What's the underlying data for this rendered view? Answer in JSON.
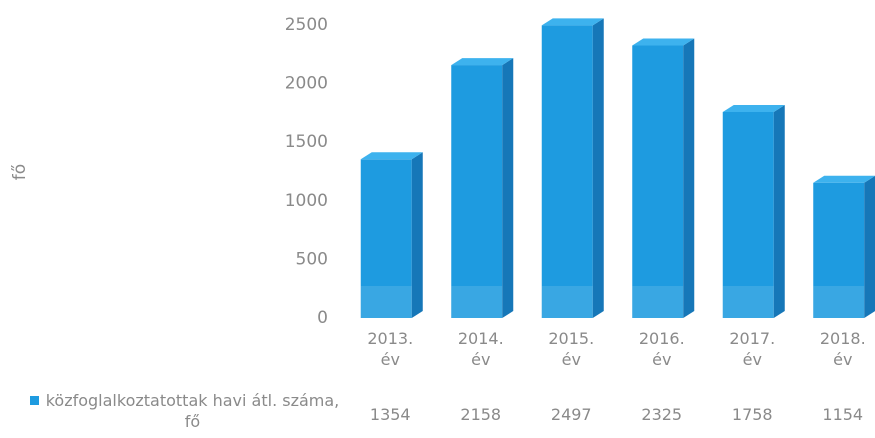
{
  "chart_data": {
    "type": "bar3d",
    "y_axis_label": "fő",
    "categories": [
      "2013. év",
      "2014. év",
      "2015. év",
      "2016. év",
      "2017. év",
      "2018. év"
    ],
    "series": [
      {
        "name": "közfoglalkoztatottak havi átl. száma, fő",
        "color": "#1e9be0",
        "values": [
          1354,
          2158,
          2497,
          2325,
          1758,
          1154
        ]
      }
    ],
    "ylim": [
      0,
      2500
    ],
    "yticks": [
      0,
      500,
      1000,
      1500,
      2000,
      2500
    ],
    "grid": false
  }
}
